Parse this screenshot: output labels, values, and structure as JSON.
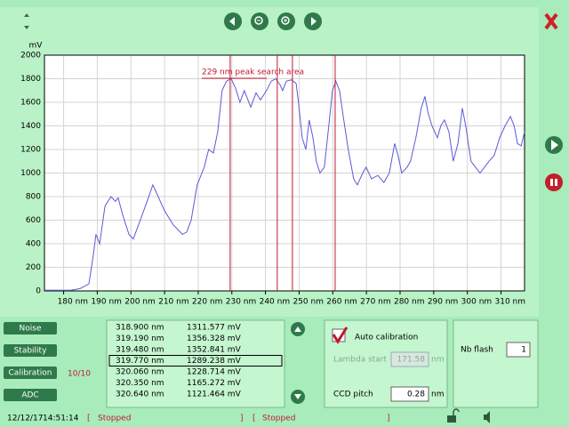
{
  "chart_data": {
    "type": "line",
    "y_label": "mV",
    "x": [
      174.3,
      182.2,
      184.9,
      187.5,
      188.8,
      189.6,
      190.7,
      192.3,
      194.1,
      195.4,
      196.2,
      197.5,
      199.4,
      200.7,
      202.8,
      204.7,
      206.5,
      208.1,
      210.0,
      212.6,
      215.3,
      216.6,
      217.9,
      219.7,
      221.8,
      223.1,
      224.5,
      225.8,
      227.1,
      228.4,
      229.8,
      231.1,
      232.4,
      233.7,
      235.6,
      237.2,
      238.5,
      240.3,
      241.7,
      243.0,
      244.3,
      245.1,
      246.2,
      247.7,
      249.1,
      249.8,
      250.9,
      252.0,
      253.0,
      254.1,
      255.1,
      256.2,
      257.5,
      258.8,
      259.9,
      260.9,
      262.0,
      263.0,
      264.6,
      266.2,
      267.3,
      268.9,
      269.9,
      271.5,
      273.4,
      275.2,
      276.8,
      278.4,
      279.4,
      280.5,
      282.1,
      283.1,
      284.7,
      286.3,
      287.4,
      288.4,
      289.5,
      291.1,
      292.1,
      293.2,
      294.5,
      295.8,
      297.2,
      298.5,
      299.5,
      301.1,
      302.4,
      303.8,
      305.1,
      306.4,
      308.0,
      309.6,
      311.2,
      312.8,
      313.9,
      314.9,
      316.0,
      317.0
    ],
    "series": [
      {
        "color": "#5a5ad8",
        "values": [
          5,
          5,
          20,
          60,
          300,
          480,
          400,
          720,
          800,
          760,
          790,
          650,
          480,
          440,
          600,
          750,
          900,
          800,
          680,
          560,
          480,
          500,
          600,
          900,
          1050,
          1200,
          1170,
          1350,
          1700,
          1780,
          1800,
          1720,
          1600,
          1700,
          1560,
          1680,
          1620,
          1700,
          1780,
          1800,
          1750,
          1700,
          1780,
          1790,
          1760,
          1600,
          1300,
          1200,
          1450,
          1300,
          1100,
          1000,
          1050,
          1400,
          1700,
          1780,
          1700,
          1500,
          1200,
          950,
          900,
          1000,
          1050,
          950,
          980,
          920,
          1000,
          1250,
          1150,
          1000,
          1050,
          1100,
          1300,
          1550,
          1650,
          1500,
          1400,
          1300,
          1400,
          1450,
          1350,
          1100,
          1250,
          1550,
          1400,
          1100,
          1050,
          1000,
          1050,
          1100,
          1150,
          1300,
          1400,
          1480,
          1400,
          1250,
          1230,
          1350
        ]
      }
    ],
    "xlim": [
      174.3,
      317.0
    ],
    "ylim": [
      0,
      2000
    ],
    "xticks": [
      {
        "value": 180,
        "label": "180 nm"
      },
      {
        "value": 190,
        "label": "190 nm"
      },
      {
        "value": 200,
        "label": "200 nm"
      },
      {
        "value": 210,
        "label": "210 nm"
      },
      {
        "value": 220,
        "label": "220 nm"
      },
      {
        "value": 230,
        "label": "230 nm"
      },
      {
        "value": 240,
        "label": "240 nm"
      },
      {
        "value": 250,
        "label": "250 nm"
      },
      {
        "value": 260,
        "label": "260 nm"
      },
      {
        "value": 270,
        "label": "270 nm"
      },
      {
        "value": 280,
        "label": "280 nm"
      },
      {
        "value": 290,
        "label": "290 nm"
      },
      {
        "value": 300,
        "label": "300 nm"
      },
      {
        "value": 310,
        "label": "310 nm"
      }
    ],
    "yticks": [
      0,
      200,
      400,
      600,
      800,
      1000,
      1200,
      1400,
      1600,
      1800,
      2000
    ],
    "grid": true,
    "annotation": "229 nm peak search area",
    "marker_color": "#c01830",
    "markers": [
      229.5,
      243.5,
      248,
      260.7
    ]
  },
  "buttons": [
    "Noise",
    "Stability",
    "Calibration",
    "ADC"
  ],
  "counter": "10/10",
  "list": {
    "rows": [
      [
        "318.900 nm",
        "1311.577 mV"
      ],
      [
        "319.190 nm",
        "1356.328 mV"
      ],
      [
        "319.480 nm",
        "1352.841 mV"
      ],
      [
        "319.770 nm",
        "1289.238 mV"
      ],
      [
        "320.060 nm",
        "1228.714 mV"
      ],
      [
        "320.350 nm",
        "1165.272 mV"
      ],
      [
        "320.640 nm",
        "1121.464 mV"
      ]
    ],
    "selected_row": 3
  },
  "calibration": {
    "auto_label": "Auto calibration",
    "checked": true,
    "lambda_label": "Lambda start",
    "lambda_value": "171.58",
    "lambda_unit": "nm",
    "ccd_label": "CCD pitch",
    "ccd_value": "0.28",
    "ccd_unit": "nm"
  },
  "flash": {
    "label": "Nb flash",
    "value": "1"
  },
  "status": {
    "date": "12/12/17",
    "time": "14:51:14",
    "open1": "[",
    "state1": "Stopped",
    "close1": "]",
    "open2": "[",
    "state2": "Stopped",
    "close2": "]"
  }
}
